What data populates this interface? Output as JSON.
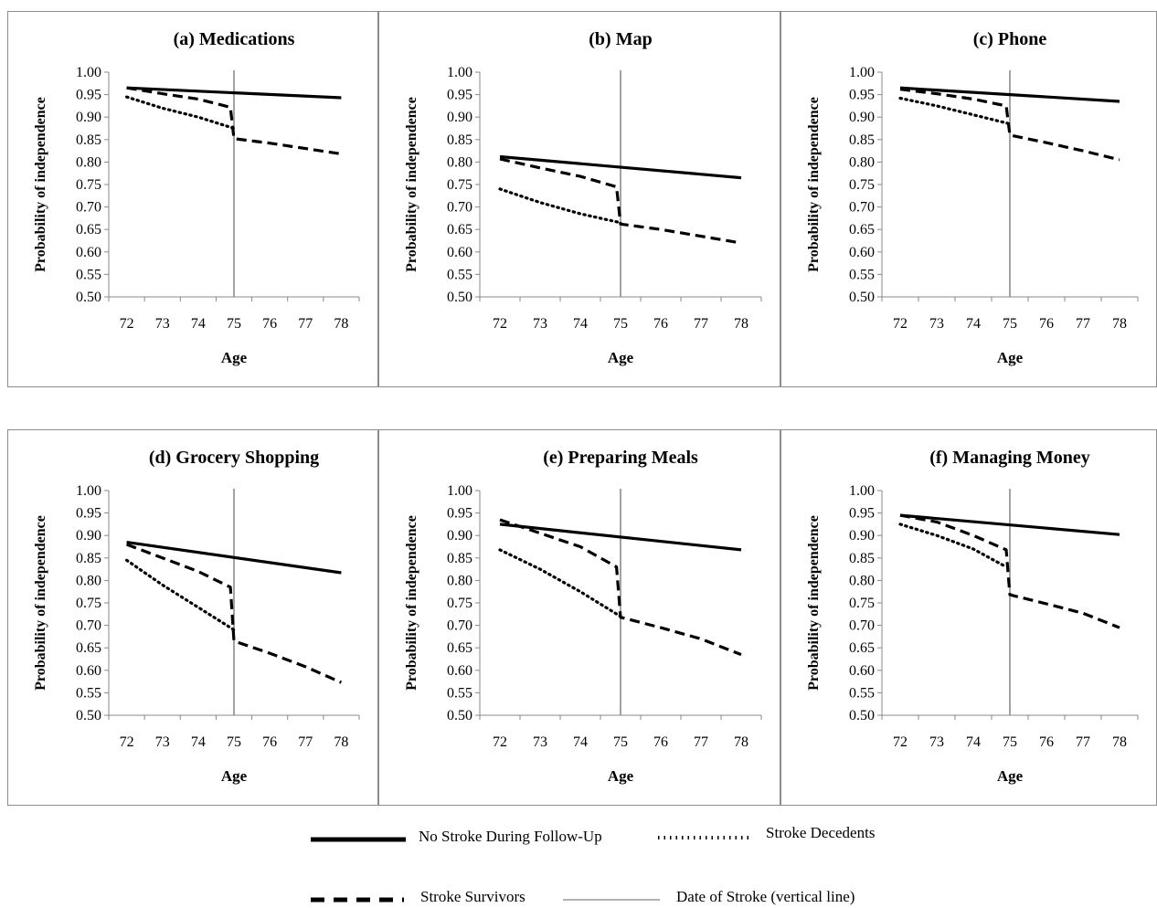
{
  "figure": {
    "legend": [
      {
        "key": "nostroke",
        "label": "No Stroke During Follow-Up"
      },
      {
        "key": "decedent",
        "label": "Stroke Decedents"
      },
      {
        "key": "survivor",
        "label": "Stroke Survivors"
      },
      {
        "key": "strokedate",
        "label": "Date of Stroke (vertical line)"
      }
    ]
  },
  "chart_data": [
    {
      "type": "line",
      "title": "(a) Medications",
      "xlabel": "Age",
      "ylabel": "Probability of independence",
      "xticks": [
        72,
        73,
        74,
        75,
        76,
        77,
        78
      ],
      "yticks": [
        "0.50",
        "0.55",
        "0.60",
        "0.65",
        "0.70",
        "0.75",
        "0.80",
        "0.85",
        "0.90",
        "0.95",
        "1.00"
      ],
      "xlim": [
        71.5,
        78.5
      ],
      "ylim": [
        0.5,
        1.0
      ],
      "stroke_date": 75,
      "series": [
        {
          "name": "No Stroke During Follow-Up",
          "style": "solid",
          "x": [
            72,
            78
          ],
          "y": [
            0.965,
            0.943
          ]
        },
        {
          "name": "Stroke Decedents",
          "style": "dotted",
          "x": [
            72,
            73,
            74,
            75
          ],
          "y": [
            0.945,
            0.92,
            0.9,
            0.875
          ]
        },
        {
          "name": "Stroke Survivors",
          "style": "dashed",
          "x": [
            72,
            73,
            74,
            74.9,
            75,
            76,
            77,
            78
          ],
          "y": [
            0.965,
            0.952,
            0.94,
            0.922,
            0.852,
            0.842,
            0.83,
            0.818
          ]
        }
      ]
    },
    {
      "type": "line",
      "title": "(b) Map",
      "xlabel": "Age",
      "ylabel": "Probability of independence",
      "xticks": [
        72,
        73,
        74,
        75,
        76,
        77,
        78
      ],
      "yticks": [
        "0.50",
        "0.55",
        "0.60",
        "0.65",
        "0.70",
        "0.75",
        "0.80",
        "0.85",
        "0.90",
        "0.95",
        "1.00"
      ],
      "xlim": [
        71.5,
        78.5
      ],
      "ylim": [
        0.5,
        1.0
      ],
      "stroke_date": 75,
      "series": [
        {
          "name": "No Stroke During Follow-Up",
          "style": "solid",
          "x": [
            72,
            78
          ],
          "y": [
            0.812,
            0.765
          ]
        },
        {
          "name": "Stroke Decedents",
          "style": "dotted",
          "x": [
            72,
            73,
            74,
            75
          ],
          "y": [
            0.74,
            0.71,
            0.685,
            0.665
          ]
        },
        {
          "name": "Stroke Survivors",
          "style": "dashed",
          "x": [
            72,
            73,
            74,
            74.9,
            75,
            76,
            77,
            78
          ],
          "y": [
            0.807,
            0.787,
            0.768,
            0.745,
            0.662,
            0.65,
            0.635,
            0.62
          ]
        }
      ]
    },
    {
      "type": "line",
      "title": "(c) Phone",
      "xlabel": "Age",
      "ylabel": "Probability of independence",
      "xticks": [
        72,
        73,
        74,
        75,
        76,
        77,
        78
      ],
      "yticks": [
        "0.50",
        "0.55",
        "0.60",
        "0.65",
        "0.70",
        "0.75",
        "0.80",
        "0.85",
        "0.90",
        "0.95",
        "1.00"
      ],
      "xlim": [
        71.5,
        78.5
      ],
      "ylim": [
        0.5,
        1.0
      ],
      "stroke_date": 75,
      "series": [
        {
          "name": "No Stroke During Follow-Up",
          "style": "solid",
          "x": [
            72,
            78
          ],
          "y": [
            0.965,
            0.935
          ]
        },
        {
          "name": "Stroke Decedents",
          "style": "dotted",
          "x": [
            72,
            73,
            74,
            75
          ],
          "y": [
            0.942,
            0.925,
            0.905,
            0.885
          ]
        },
        {
          "name": "Stroke Survivors",
          "style": "dashed",
          "x": [
            72,
            73,
            74,
            74.9,
            75,
            76,
            77,
            78
          ],
          "y": [
            0.962,
            0.952,
            0.94,
            0.925,
            0.86,
            0.843,
            0.825,
            0.805
          ]
        }
      ]
    },
    {
      "type": "line",
      "title": "(d) Grocery Shopping",
      "xlabel": "Age",
      "ylabel": "Probability of independence",
      "xticks": [
        72,
        73,
        74,
        75,
        76,
        77,
        78
      ],
      "yticks": [
        "0.50",
        "0.55",
        "0.60",
        "0.65",
        "0.70",
        "0.75",
        "0.80",
        "0.85",
        "0.90",
        "0.95",
        "1.00"
      ],
      "xlim": [
        71.5,
        78.5
      ],
      "ylim": [
        0.5,
        1.0
      ],
      "stroke_date": 75,
      "series": [
        {
          "name": "No Stroke During Follow-Up",
          "style": "solid",
          "x": [
            72,
            78
          ],
          "y": [
            0.885,
            0.817
          ]
        },
        {
          "name": "Stroke Decedents",
          "style": "dotted",
          "x": [
            72,
            73,
            74,
            75
          ],
          "y": [
            0.845,
            0.79,
            0.74,
            0.69
          ]
        },
        {
          "name": "Stroke Survivors",
          "style": "dashed",
          "x": [
            72,
            73,
            74,
            74.9,
            75,
            76,
            77,
            78
          ],
          "y": [
            0.88,
            0.85,
            0.82,
            0.785,
            0.665,
            0.638,
            0.608,
            0.573
          ]
        }
      ]
    },
    {
      "type": "line",
      "title": "(e) Preparing Meals",
      "xlabel": "Age",
      "ylabel": "Probability of independence",
      "xticks": [
        72,
        73,
        74,
        75,
        76,
        77,
        78
      ],
      "yticks": [
        "0.50",
        "0.55",
        "0.60",
        "0.65",
        "0.70",
        "0.75",
        "0.80",
        "0.85",
        "0.90",
        "0.95",
        "1.00"
      ],
      "xlim": [
        71.5,
        78.5
      ],
      "ylim": [
        0.5,
        1.0
      ],
      "stroke_date": 75,
      "series": [
        {
          "name": "No Stroke During Follow-Up",
          "style": "solid",
          "x": [
            72,
            78
          ],
          "y": [
            0.925,
            0.868
          ]
        },
        {
          "name": "Stroke Decedents",
          "style": "dotted",
          "x": [
            72,
            73,
            74,
            75
          ],
          "y": [
            0.868,
            0.825,
            0.775,
            0.72
          ]
        },
        {
          "name": "Stroke Survivors",
          "style": "dashed",
          "x": [
            72,
            73,
            74,
            74.9,
            75,
            76,
            77,
            78
          ],
          "y": [
            0.935,
            0.905,
            0.875,
            0.83,
            0.718,
            0.695,
            0.67,
            0.635
          ]
        }
      ]
    },
    {
      "type": "line",
      "title": "(f) Managing Money",
      "xlabel": "Age",
      "ylabel": "Probability of independence",
      "xticks": [
        72,
        73,
        74,
        75,
        76,
        77,
        78
      ],
      "yticks": [
        "0.50",
        "0.55",
        "0.60",
        "0.65",
        "0.70",
        "0.75",
        "0.80",
        "0.85",
        "0.90",
        "0.95",
        "1.00"
      ],
      "xlim": [
        71.5,
        78.5
      ],
      "ylim": [
        0.5,
        1.0
      ],
      "stroke_date": 75,
      "series": [
        {
          "name": "No Stroke During Follow-Up",
          "style": "solid",
          "x": [
            72,
            78
          ],
          "y": [
            0.945,
            0.902
          ]
        },
        {
          "name": "Stroke Decedents",
          "style": "dotted",
          "x": [
            72,
            73,
            74,
            74.9
          ],
          "y": [
            0.925,
            0.9,
            0.87,
            0.83
          ]
        },
        {
          "name": "Stroke Survivors",
          "style": "dashed",
          "x": [
            72,
            73,
            74,
            74.9,
            75,
            76,
            77,
            78
          ],
          "y": [
            0.945,
            0.93,
            0.9,
            0.868,
            0.768,
            0.748,
            0.727,
            0.695
          ]
        }
      ]
    }
  ]
}
